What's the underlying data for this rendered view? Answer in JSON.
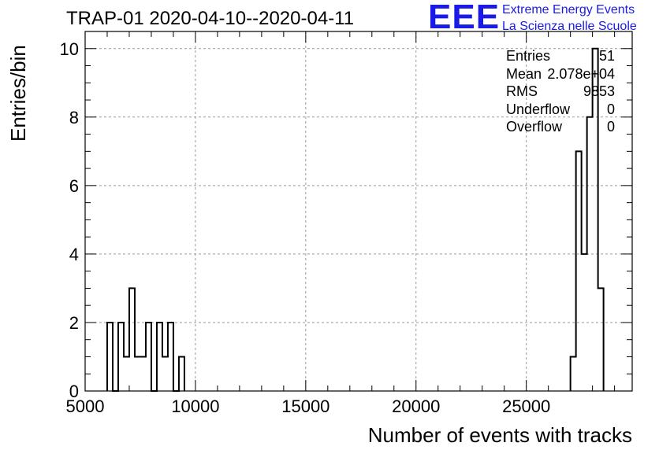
{
  "header": {
    "title": "TRAP-01 2020-04-10--2020-04-11"
  },
  "logo": {
    "mark": "EEE",
    "line1": "Extreme Energy Events",
    "line2": "La Scienza nelle Scuole",
    "color": "#1a1ae6"
  },
  "stats_box": {
    "rows": [
      {
        "label": "Entries",
        "value": "51"
      },
      {
        "label": "Mean",
        "value": "2.078e+04"
      },
      {
        "label": "RMS",
        "value": "9853"
      },
      {
        "label": "Underflow",
        "value": "0"
      },
      {
        "label": "Overflow",
        "value": "0"
      }
    ]
  },
  "chart_data": {
    "type": "bar",
    "histogram": "step",
    "title": "TRAP-01 2020-04-10--2020-04-11",
    "xlabel": "Number of events with tracks",
    "ylabel": "Entries/bin",
    "xlim": [
      5000,
      29800
    ],
    "ylim": [
      0,
      10.5
    ],
    "grid": true,
    "line_color": "#000000",
    "x_ticks": [
      "5000",
      "10000",
      "15000",
      "20000",
      "25000"
    ],
    "y_ticks": [
      "0",
      "2",
      "4",
      "6",
      "8",
      "10"
    ],
    "bin_width": 250,
    "bins": [
      {
        "x": 6000,
        "value": 2
      },
      {
        "x": 6250,
        "value": 0
      },
      {
        "x": 6500,
        "value": 2
      },
      {
        "x": 6750,
        "value": 1
      },
      {
        "x": 7000,
        "value": 3
      },
      {
        "x": 7250,
        "value": 1
      },
      {
        "x": 7500,
        "value": 1
      },
      {
        "x": 7750,
        "value": 2
      },
      {
        "x": 8000,
        "value": 0
      },
      {
        "x": 8250,
        "value": 2
      },
      {
        "x": 8500,
        "value": 1
      },
      {
        "x": 8750,
        "value": 2
      },
      {
        "x": 9000,
        "value": 0
      },
      {
        "x": 9250,
        "value": 1
      },
      {
        "x": 27000,
        "value": 1
      },
      {
        "x": 27250,
        "value": 7
      },
      {
        "x": 27500,
        "value": 4
      },
      {
        "x": 27750,
        "value": 8
      },
      {
        "x": 28000,
        "value": 10
      },
      {
        "x": 28250,
        "value": 3
      }
    ]
  }
}
